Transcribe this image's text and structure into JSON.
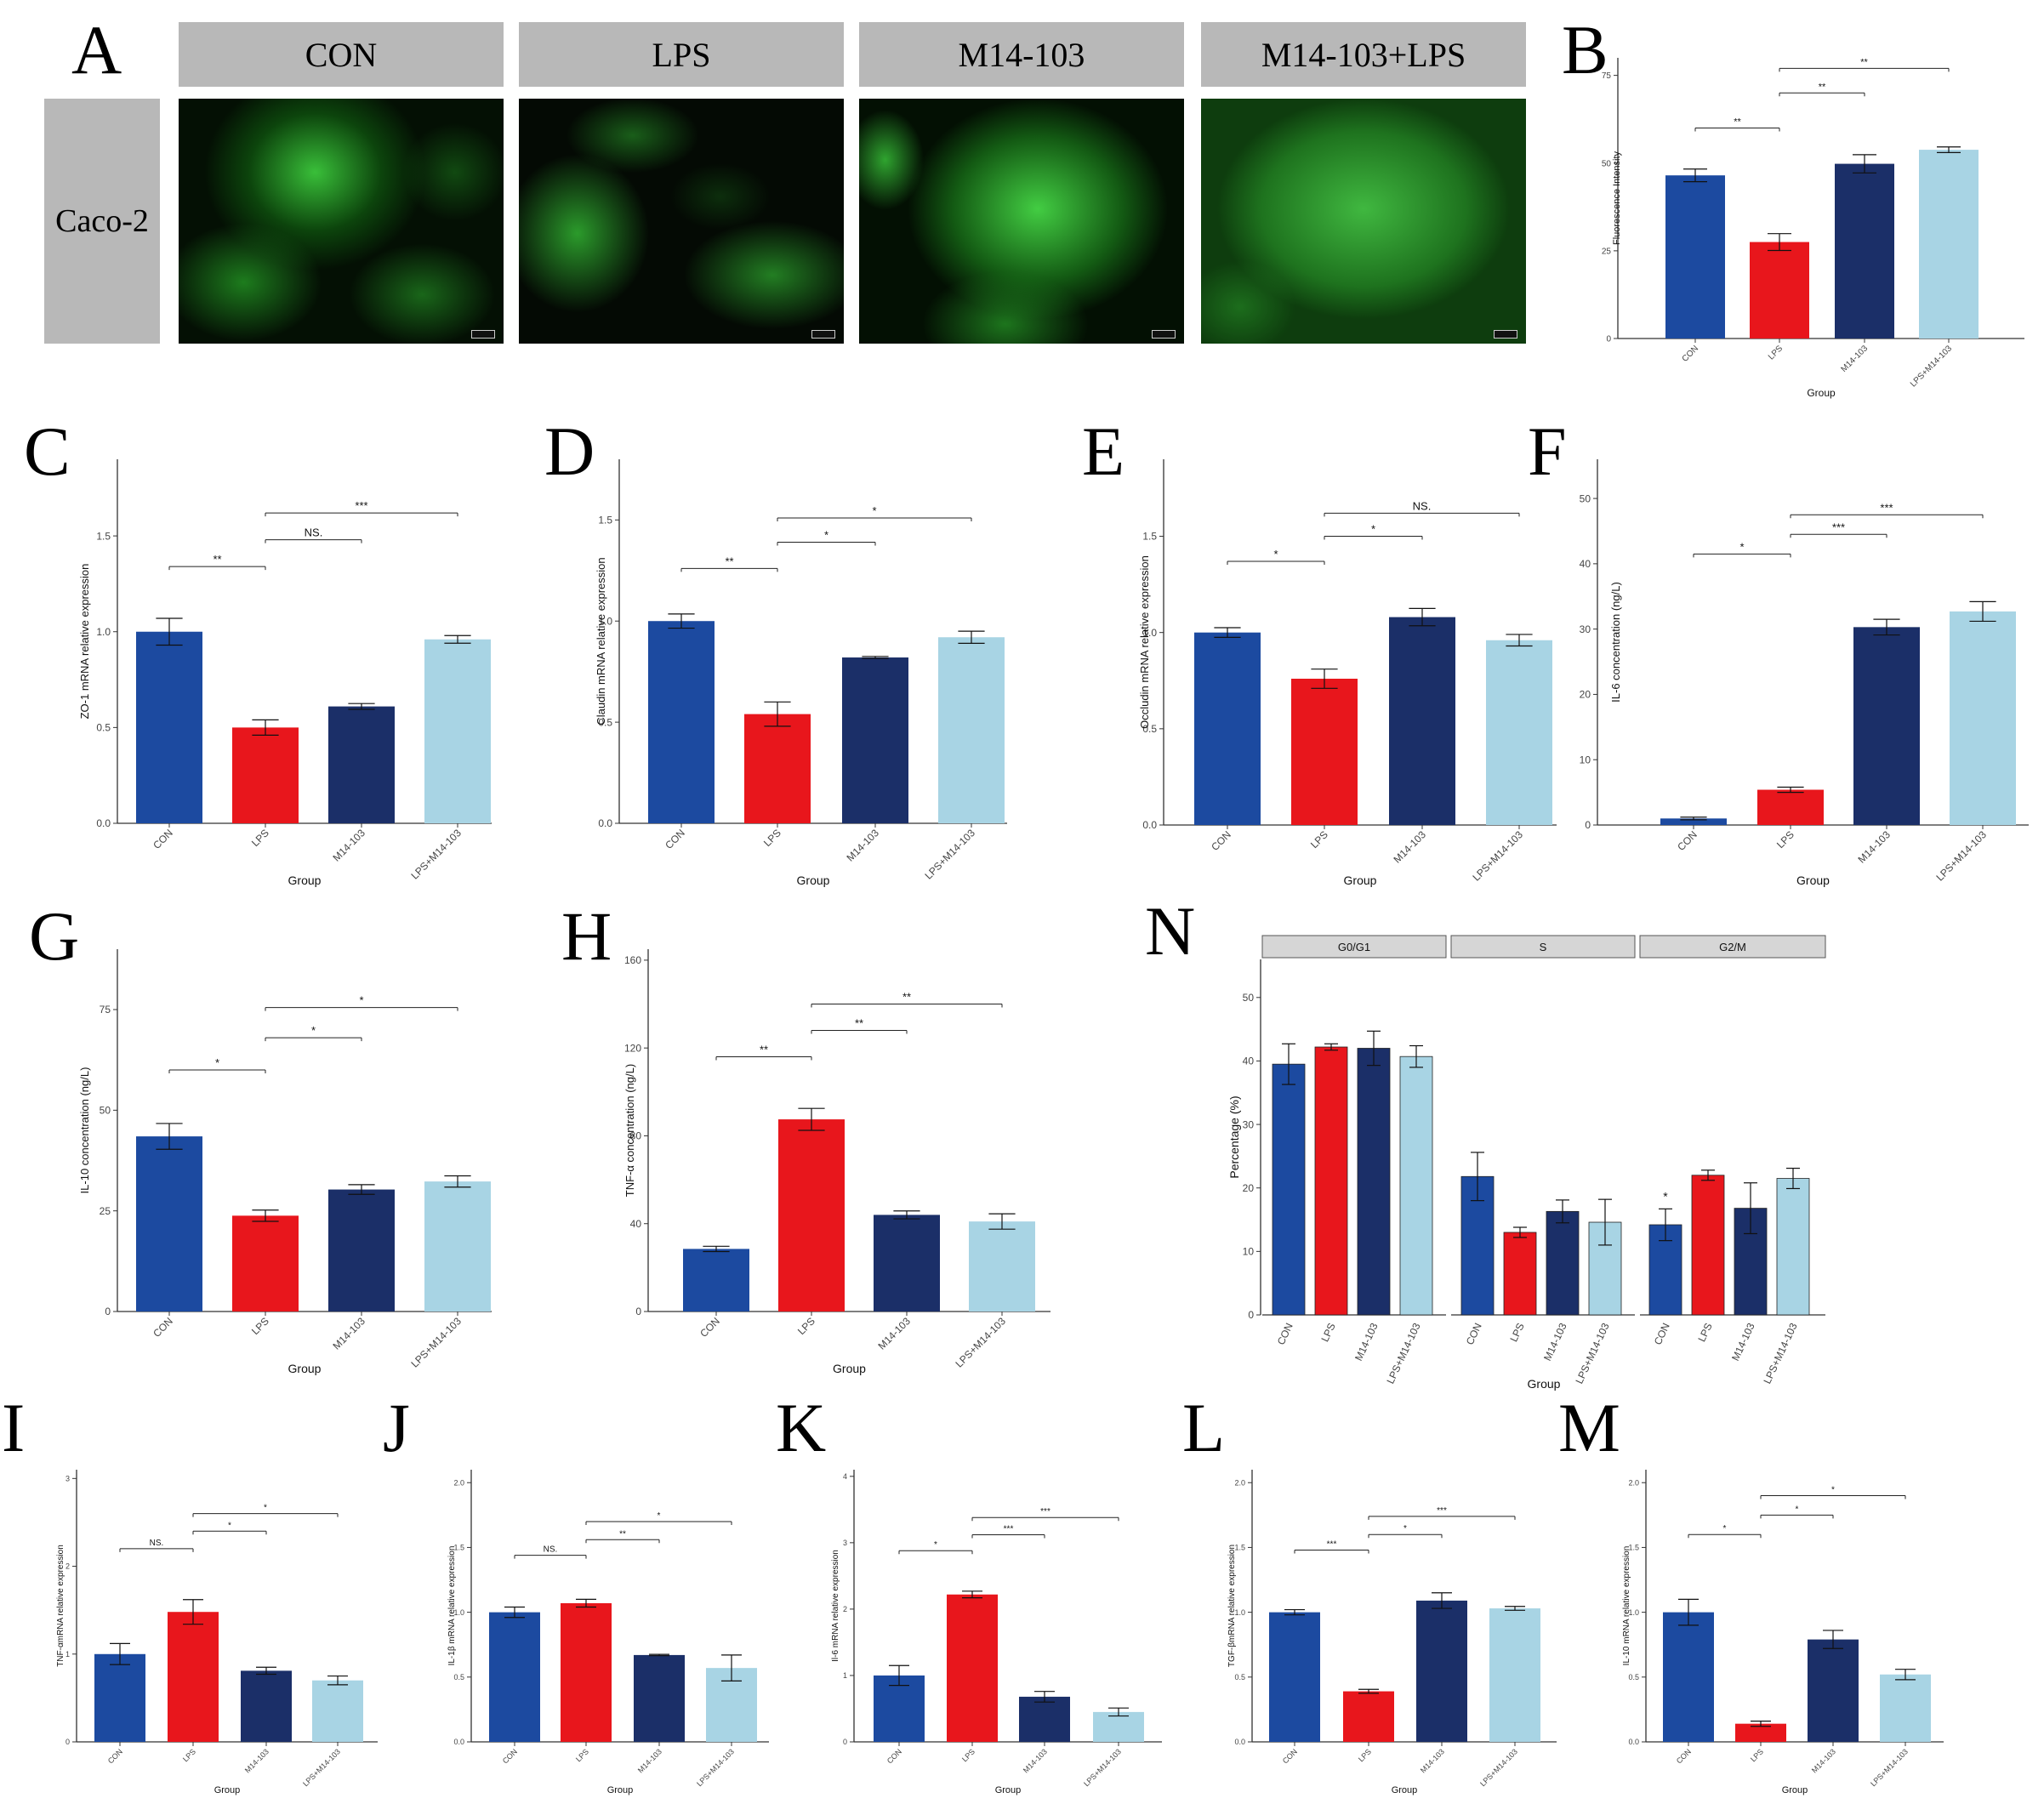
{
  "panel_letters": {
    "A": "A",
    "B": "B",
    "C": "C",
    "D": "D",
    "E": "E",
    "F": "F",
    "G": "G",
    "H": "H",
    "I": "I",
    "J": "J",
    "K": "K",
    "L": "L",
    "M": "M",
    "N": "N"
  },
  "panel_a": {
    "conditions": [
      "CON",
      "LPS",
      "M14-103",
      "M14-103+LPS"
    ],
    "row_label": "Caco-2"
  },
  "colors": {
    "CON": "#1c4aa0",
    "LPS": "#e8161c",
    "M14-103": "#1b2f68",
    "LPS+M14-103": "#a8d4e4"
  },
  "chart_data": [
    {
      "id": "B",
      "type": "bar",
      "categories": [
        "CON",
        "LPS",
        "M14-103",
        "LPS+M14-103"
      ],
      "values": [
        46.5,
        27.5,
        49.8,
        53.8
      ],
      "errors": [
        1.8,
        2.4,
        2.6,
        0.8
      ],
      "xlabel": "Group",
      "ylabel": "Fluorescence Intensity",
      "ylim": [
        0,
        80
      ],
      "yticks": [
        0,
        25,
        50,
        75
      ],
      "sig": [
        {
          "from": 0,
          "to": 1,
          "y": 60,
          "label": "**"
        },
        {
          "from": 1,
          "to": 2,
          "y": 70,
          "label": "**"
        },
        {
          "from": 1,
          "to": 3,
          "y": 77,
          "label": "**"
        }
      ]
    },
    {
      "id": "C",
      "type": "bar",
      "categories": [
        "CON",
        "LPS",
        "M14-103",
        "LPS+M14-103"
      ],
      "values": [
        1.0,
        0.5,
        0.61,
        0.96
      ],
      "errors": [
        0.07,
        0.04,
        0.015,
        0.02
      ],
      "xlabel": "Group",
      "ylabel": "ZO-1 mRNA relative expression",
      "ylim": [
        0,
        1.9
      ],
      "yticks": [
        0.0,
        0.5,
        1.0,
        1.5
      ],
      "sig": [
        {
          "from": 0,
          "to": 1,
          "y": 1.34,
          "label": "**"
        },
        {
          "from": 1,
          "to": 2,
          "y": 1.48,
          "label": "NS."
        },
        {
          "from": 1,
          "to": 3,
          "y": 1.62,
          "label": "***"
        }
      ]
    },
    {
      "id": "D",
      "type": "bar",
      "categories": [
        "CON",
        "LPS",
        "M14-103",
        "LPS+M14-103"
      ],
      "values": [
        1.0,
        0.54,
        0.82,
        0.92
      ],
      "errors": [
        0.035,
        0.06,
        0.005,
        0.03
      ],
      "xlabel": "Group",
      "ylabel": "Claudin mRNA relative expression",
      "ylim": [
        0,
        1.8
      ],
      "yticks": [
        0.0,
        0.5,
        1.0,
        1.5
      ],
      "sig": [
        {
          "from": 0,
          "to": 1,
          "y": 1.26,
          "label": "**"
        },
        {
          "from": 1,
          "to": 2,
          "y": 1.39,
          "label": "*"
        },
        {
          "from": 1,
          "to": 3,
          "y": 1.51,
          "label": "*"
        }
      ]
    },
    {
      "id": "E",
      "type": "bar",
      "categories": [
        "CON",
        "LPS",
        "M14-103",
        "LPS+M14-103"
      ],
      "values": [
        1.0,
        0.76,
        1.08,
        0.96
      ],
      "errors": [
        0.025,
        0.05,
        0.045,
        0.03
      ],
      "xlabel": "Group",
      "ylabel": "Occludin mRNA relative expression",
      "ylim": [
        0,
        1.9
      ],
      "yticks": [
        0.0,
        0.5,
        1.0,
        1.5
      ],
      "sig": [
        {
          "from": 0,
          "to": 1,
          "y": 1.37,
          "label": "*"
        },
        {
          "from": 1,
          "to": 2,
          "y": 1.5,
          "label": "*"
        },
        {
          "from": 1,
          "to": 3,
          "y": 1.62,
          "label": "NS."
        }
      ]
    },
    {
      "id": "F",
      "type": "bar",
      "categories": [
        "CON",
        "LPS",
        "M14-103",
        "LPS+M14-103"
      ],
      "values": [
        1.0,
        5.4,
        30.3,
        32.7
      ],
      "errors": [
        0.2,
        0.4,
        1.2,
        1.5
      ],
      "xlabel": "Group",
      "ylabel": "IL-6 concentration (ng/L)",
      "ylim": [
        0,
        56
      ],
      "yticks": [
        0,
        10,
        20,
        30,
        40,
        50
      ],
      "sig": [
        {
          "from": 0,
          "to": 1,
          "y": 41.5,
          "label": "*"
        },
        {
          "from": 1,
          "to": 2,
          "y": 44.5,
          "label": "***"
        },
        {
          "from": 1,
          "to": 3,
          "y": 47.5,
          "label": "***"
        }
      ]
    },
    {
      "id": "G",
      "type": "bar",
      "categories": [
        "CON",
        "LPS",
        "M14-103",
        "LPS+M14-103"
      ],
      "values": [
        43.5,
        23.8,
        30.3,
        32.3
      ],
      "errors": [
        3.2,
        1.4,
        1.2,
        1.4
      ],
      "xlabel": "Group",
      "ylabel": "IL-10 concentration (ng/L)",
      "ylim": [
        0,
        90
      ],
      "yticks": [
        0,
        25,
        50,
        75
      ],
      "sig": [
        {
          "from": 0,
          "to": 1,
          "y": 60,
          "label": "*"
        },
        {
          "from": 1,
          "to": 2,
          "y": 68,
          "label": "*"
        },
        {
          "from": 1,
          "to": 3,
          "y": 75.5,
          "label": "*"
        }
      ]
    },
    {
      "id": "H",
      "type": "bar",
      "categories": [
        "CON",
        "LPS",
        "M14-103",
        "LPS+M14-103"
      ],
      "values": [
        28.5,
        87.5,
        44.0,
        41.0
      ],
      "errors": [
        1.2,
        5.0,
        1.8,
        3.5
      ],
      "xlabel": "Group",
      "ylabel": "TNF-α concentration (ng/L)",
      "ylim": [
        0,
        165
      ],
      "yticks": [
        0,
        40,
        80,
        120,
        160
      ],
      "sig": [
        {
          "from": 0,
          "to": 1,
          "y": 116,
          "label": "**"
        },
        {
          "from": 1,
          "to": 2,
          "y": 128,
          "label": "**"
        },
        {
          "from": 1,
          "to": 3,
          "y": 140,
          "label": "**"
        }
      ]
    },
    {
      "id": "N",
      "type": "bar",
      "facets": [
        "G0/G1",
        "S",
        "G2/M"
      ],
      "categories": [
        "CON",
        "LPS",
        "M14-103",
        "LPS+M14-103"
      ],
      "series": [
        {
          "facet": "G0/G1",
          "values": [
            39.5,
            42.2,
            42.0,
            40.7
          ],
          "errors": [
            3.2,
            0.5,
            2.7,
            1.7
          ]
        },
        {
          "facet": "S",
          "values": [
            21.8,
            13.0,
            16.3,
            14.6
          ],
          "errors": [
            3.8,
            0.8,
            1.8,
            3.6
          ]
        },
        {
          "facet": "G2/M",
          "values": [
            14.2,
            22.0,
            16.8,
            21.5
          ],
          "errors": [
            2.5,
            0.8,
            4.0,
            1.6
          ]
        }
      ],
      "marks": [
        {
          "facet": "G2/M",
          "index": 0,
          "label": "*"
        }
      ],
      "xlabel": "Group",
      "ylabel": "Percentage (%)",
      "ylim": [
        0,
        56
      ],
      "yticks": [
        0,
        10,
        20,
        30,
        40,
        50
      ]
    },
    {
      "id": "I",
      "type": "bar",
      "categories": [
        "CON",
        "LPS",
        "M14-103",
        "LPS+M14-103"
      ],
      "values": [
        1.0,
        1.48,
        0.81,
        0.7
      ],
      "errors": [
        0.12,
        0.14,
        0.04,
        0.05
      ],
      "xlabel": "Group",
      "ylabel": "TNF-αmRNA relative expression",
      "ylim": [
        0,
        3.1
      ],
      "yticks": [
        0,
        1,
        2,
        3
      ],
      "sig": [
        {
          "from": 0,
          "to": 1,
          "y": 2.2,
          "label": "NS."
        },
        {
          "from": 1,
          "to": 2,
          "y": 2.4,
          "label": "*"
        },
        {
          "from": 1,
          "to": 3,
          "y": 2.6,
          "label": "*"
        }
      ]
    },
    {
      "id": "J",
      "type": "bar",
      "categories": [
        "CON",
        "LPS",
        "M14-103",
        "LPS+M14-103"
      ],
      "values": [
        1.0,
        1.07,
        0.67,
        0.57
      ],
      "errors": [
        0.04,
        0.03,
        0.005,
        0.1
      ],
      "xlabel": "Group",
      "ylabel": "IL-1β mRNA relative expression",
      "ylim": [
        0,
        2.1
      ],
      "yticks": [
        0.0,
        0.5,
        1.0,
        1.5,
        2.0
      ],
      "sig": [
        {
          "from": 0,
          "to": 1,
          "y": 1.44,
          "label": "NS."
        },
        {
          "from": 1,
          "to": 2,
          "y": 1.56,
          "label": "**"
        },
        {
          "from": 1,
          "to": 3,
          "y": 1.7,
          "label": "*"
        }
      ]
    },
    {
      "id": "K",
      "type": "bar",
      "categories": [
        "CON",
        "LPS",
        "M14-103",
        "LPS+M14-103"
      ],
      "values": [
        1.0,
        2.22,
        0.68,
        0.45
      ],
      "errors": [
        0.15,
        0.05,
        0.08,
        0.06
      ],
      "xlabel": "Group",
      "ylabel": "Il-6 mRNA relative expression",
      "ylim": [
        0,
        4.1
      ],
      "yticks": [
        0,
        1,
        2,
        3,
        4
      ],
      "sig": [
        {
          "from": 0,
          "to": 1,
          "y": 2.88,
          "label": "*"
        },
        {
          "from": 1,
          "to": 2,
          "y": 3.12,
          "label": "***"
        },
        {
          "from": 1,
          "to": 3,
          "y": 3.38,
          "label": "***"
        }
      ]
    },
    {
      "id": "L",
      "type": "bar",
      "categories": [
        "CON",
        "LPS",
        "M14-103",
        "LPS+M14-103"
      ],
      "values": [
        1.0,
        0.39,
        1.09,
        1.03
      ],
      "errors": [
        0.02,
        0.015,
        0.06,
        0.015
      ],
      "xlabel": "Group",
      "ylabel": "TGF-βmRNA relative expression",
      "ylim": [
        0,
        2.1
      ],
      "yticks": [
        0.0,
        0.5,
        1.0,
        1.5,
        2.0
      ],
      "sig": [
        {
          "from": 0,
          "to": 1,
          "y": 1.48,
          "label": "***"
        },
        {
          "from": 1,
          "to": 2,
          "y": 1.6,
          "label": "*"
        },
        {
          "from": 1,
          "to": 3,
          "y": 1.74,
          "label": "***"
        }
      ]
    },
    {
      "id": "M",
      "type": "bar",
      "categories": [
        "CON",
        "LPS",
        "M14-103",
        "LPS+M14-103"
      ],
      "values": [
        1.0,
        0.14,
        0.79,
        0.52
      ],
      "errors": [
        0.1,
        0.02,
        0.07,
        0.04
      ],
      "xlabel": "Group",
      "ylabel": "IL-10 mRNA relative expression",
      "ylim": [
        0,
        2.1
      ],
      "yticks": [
        0.0,
        0.5,
        1.0,
        1.5,
        2.0
      ],
      "sig": [
        {
          "from": 0,
          "to": 1,
          "y": 1.6,
          "label": "*"
        },
        {
          "from": 1,
          "to": 2,
          "y": 1.75,
          "label": "*"
        },
        {
          "from": 1,
          "to": 3,
          "y": 1.9,
          "label": "*"
        }
      ]
    }
  ]
}
